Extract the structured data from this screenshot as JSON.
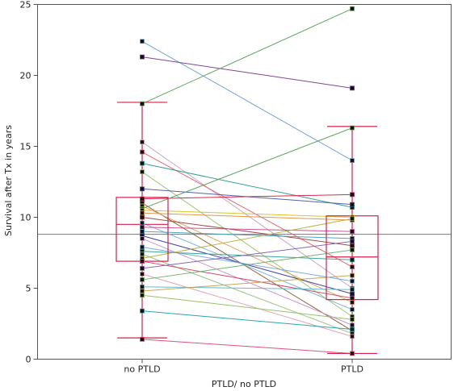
{
  "chart_data": {
    "type": "line",
    "title": "",
    "xlabel": "PTLD/ no PTLD",
    "ylabel": "Survival after Tx in years",
    "ylim": [
      0,
      25
    ],
    "yticks": [
      0,
      5,
      10,
      15,
      20,
      25
    ],
    "categories": [
      "no PTLD",
      "PTLD"
    ],
    "reference_line_y": 8.8,
    "grid": false,
    "legend": "none",
    "pairs": [
      {
        "from": 22.4,
        "to": 14.0,
        "color": "#6a9fd0"
      },
      {
        "from": 21.3,
        "to": 19.1,
        "color": "#7a3c8c"
      },
      {
        "from": 18.0,
        "to": 24.7,
        "color": "#59a05a"
      },
      {
        "from": 15.3,
        "to": 5.0,
        "color": "#c9a0c0"
      },
      {
        "from": 14.6,
        "to": 6.5,
        "color": "#e06070"
      },
      {
        "from": 13.8,
        "to": 10.7,
        "color": "#2a9a8a"
      },
      {
        "from": 13.2,
        "to": 3.0,
        "color": "#9bc36b"
      },
      {
        "from": 12.0,
        "to": 10.9,
        "color": "#4a5aa8"
      },
      {
        "from": 11.3,
        "to": 11.6,
        "color": "#d4204a"
      },
      {
        "from": 11.0,
        "to": 2.0,
        "color": "#8a5a2a"
      },
      {
        "from": 10.8,
        "to": 4.0,
        "color": "#e0a060"
      },
      {
        "from": 10.6,
        "to": 16.3,
        "color": "#59a05a"
      },
      {
        "from": 10.5,
        "to": 10.0,
        "color": "#d8c020"
      },
      {
        "from": 10.3,
        "to": 9.8,
        "color": "#e09040"
      },
      {
        "from": 10.0,
        "to": 8.0,
        "color": "#a04040"
      },
      {
        "from": 9.6,
        "to": 3.5,
        "color": "#7ab0d8"
      },
      {
        "from": 9.3,
        "to": 9.0,
        "color": "#c84a90"
      },
      {
        "from": 9.0,
        "to": 8.5,
        "color": "#40a0c0"
      },
      {
        "from": 8.7,
        "to": 4.6,
        "color": "#3a3aa0"
      },
      {
        "from": 8.5,
        "to": 2.4,
        "color": "#c890d0"
      },
      {
        "from": 7.9,
        "to": 5.5,
        "color": "#70a8e0"
      },
      {
        "from": 7.6,
        "to": 7.0,
        "color": "#30a090"
      },
      {
        "from": 7.4,
        "to": 1.8,
        "color": "#98c080"
      },
      {
        "from": 7.1,
        "to": 9.9,
        "color": "#b8b040"
      },
      {
        "from": 6.9,
        "to": 4.3,
        "color": "#d04060"
      },
      {
        "from": 6.4,
        "to": 8.3,
        "color": "#8060b0"
      },
      {
        "from": 6.0,
        "to": 1.6,
        "color": "#e0a0b0"
      },
      {
        "from": 5.6,
        "to": 7.7,
        "color": "#6ab06a"
      },
      {
        "from": 5.1,
        "to": 4.9,
        "color": "#5ab8c8"
      },
      {
        "from": 4.8,
        "to": 5.9,
        "color": "#c8a050"
      },
      {
        "from": 4.5,
        "to": 2.8,
        "color": "#90c060"
      },
      {
        "from": 3.4,
        "to": 2.1,
        "color": "#20a0b0"
      },
      {
        "from": 1.4,
        "to": 0.4,
        "color": "#e04870"
      }
    ],
    "box_no_ptld": {
      "min": 1.5,
      "q1": 6.9,
      "median": 9.5,
      "q3": 11.4,
      "max": 18.1
    },
    "box_ptld": {
      "min": 0.4,
      "q1": 4.2,
      "median": 7.2,
      "q3": 10.1,
      "max": 16.4
    }
  }
}
